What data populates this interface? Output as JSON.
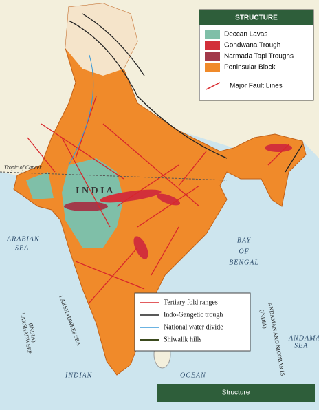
{
  "legend_top": {
    "title": "STRUCTURE",
    "items": [
      "Deccan Lavas",
      "Gondwana Trough",
      "Narmada Tapi Troughs",
      "Peninsular Block",
      "Major Fault Lines"
    ]
  },
  "legend_bottom": {
    "items": [
      "Tertiary fold ranges",
      "Indo-Gangetic trough",
      "National water divide",
      "Shiwalik hills"
    ]
  },
  "labels": {
    "tropic": "Tropic of Cancer",
    "country": "I N D I A",
    "arabian_1": "ARABIAN",
    "arabian_2": "SEA",
    "bay_1": "BAY",
    "bay_2": "OF",
    "bay_3": "BENGAL",
    "indian": "INDIAN",
    "ocean": "OCEAN",
    "lak_sea": "LAKSHADWEEP SEA",
    "lak": "LAKSHADWEEP",
    "lak_india": "(INDIA)",
    "andaman": "ANDAMAN AND NICOBAR IS",
    "andaman_india": "(INDIA)",
    "andaman_sea_1": "ANDAMAN",
    "andaman_sea_2": "SEA"
  },
  "footer": "Structure"
}
